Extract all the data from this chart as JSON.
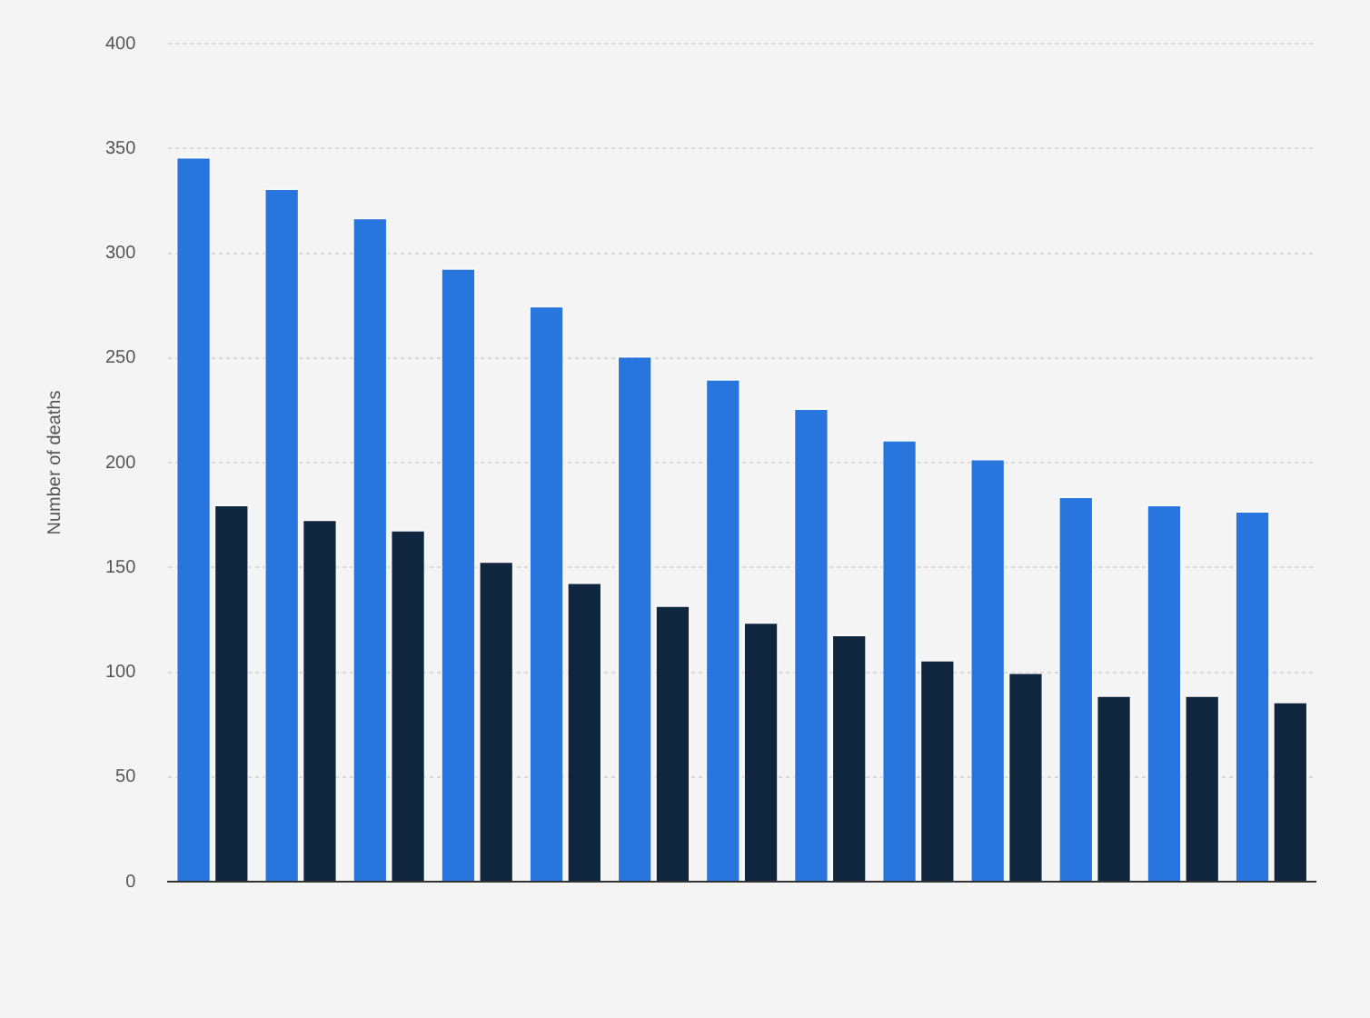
{
  "chart_data": {
    "type": "bar",
    "ylabel": "Number of deaths",
    "categories": [
      null,
      null,
      null,
      null,
      null,
      null,
      null,
      null,
      null,
      null,
      null,
      null,
      null
    ],
    "series": [
      {
        "color": "#2876dd",
        "values": [
          346,
          331,
          317,
          293,
          275,
          251,
          240,
          226,
          211,
          202,
          184,
          180,
          177
        ]
      },
      {
        "color": "#10263e",
        "values": [
          180,
          173,
          168,
          153,
          143,
          132,
          124,
          118,
          106,
          100,
          89,
          89,
          86
        ]
      }
    ],
    "ylim": [
      0,
      400
    ],
    "yticks": [
      0,
      50,
      100,
      150,
      200,
      250,
      300,
      350,
      400
    ],
    "grid": "y",
    "legend": false,
    "tick_labels": "y"
  }
}
